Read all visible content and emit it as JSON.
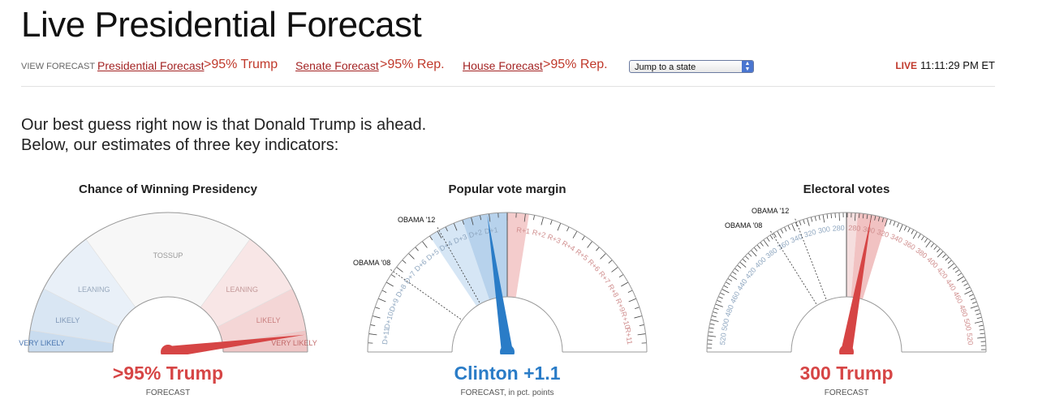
{
  "page": {
    "title": "Live Presidential Forecast"
  },
  "nav": {
    "view_label": "VIEW FORECAST",
    "links": [
      {
        "label": "Presidential Forecast",
        "value": ">95% Trump"
      },
      {
        "label": "Senate Forecast",
        "value": ">95% Rep."
      },
      {
        "label": "House Forecast",
        "value": ">95% Rep."
      }
    ],
    "select": {
      "value": "Jump to a state"
    },
    "live": {
      "tag": "LIVE",
      "time": "11:11:29 PM ET"
    }
  },
  "intro": {
    "line1": "Our best guess right now is that Donald Trump is ahead.",
    "line2": "Below, our estimates of three key indicators:"
  },
  "colors": {
    "dem": "#2a7cc7",
    "rep": "#d64545"
  },
  "gauges": {
    "chance": {
      "title": "Chance of Winning Presidency",
      "value_text": ">95% Trump",
      "sub": "FORECAST",
      "zones": [
        "VERY LIKELY",
        "LIKELY",
        "LEANING",
        "TOSSUP",
        "LEANING",
        "LIKELY",
        "VERY LIKELY"
      ],
      "trump_probability": 0.96
    },
    "popular": {
      "title": "Popular vote margin",
      "value_text": "Clinton +1.1",
      "sub_bold": "FORECAST",
      "sub_rest": ", in pct. points",
      "margin": -1.1,
      "ticks_left": [
        "D+1",
        "D+2",
        "D+3",
        "D+4",
        "D+5",
        "D+6",
        "D+7",
        "D+8",
        "D+9",
        "D+10",
        "D+11"
      ],
      "ticks_right": [
        "R+1",
        "R+2",
        "R+3",
        "R+4",
        "R+5",
        "R+6",
        "R+7",
        "R+8",
        "R+9",
        "R+10",
        "R+11"
      ],
      "markers": [
        "OBAMA '12",
        "OBAMA '08"
      ]
    },
    "electoral": {
      "title": "Electoral votes",
      "value_text": "300 Trump",
      "sub": "FORECAST",
      "value": 300,
      "ticks_left": [
        "280",
        "300",
        "320",
        "340",
        "360",
        "380",
        "400",
        "420",
        "440",
        "460",
        "480",
        "500",
        "520"
      ],
      "ticks_right": [
        "280",
        "300",
        "320",
        "340",
        "360",
        "380",
        "400",
        "420",
        "440",
        "460",
        "480",
        "500",
        "520"
      ],
      "markers": [
        "OBAMA '12",
        "OBAMA '08"
      ]
    }
  }
}
